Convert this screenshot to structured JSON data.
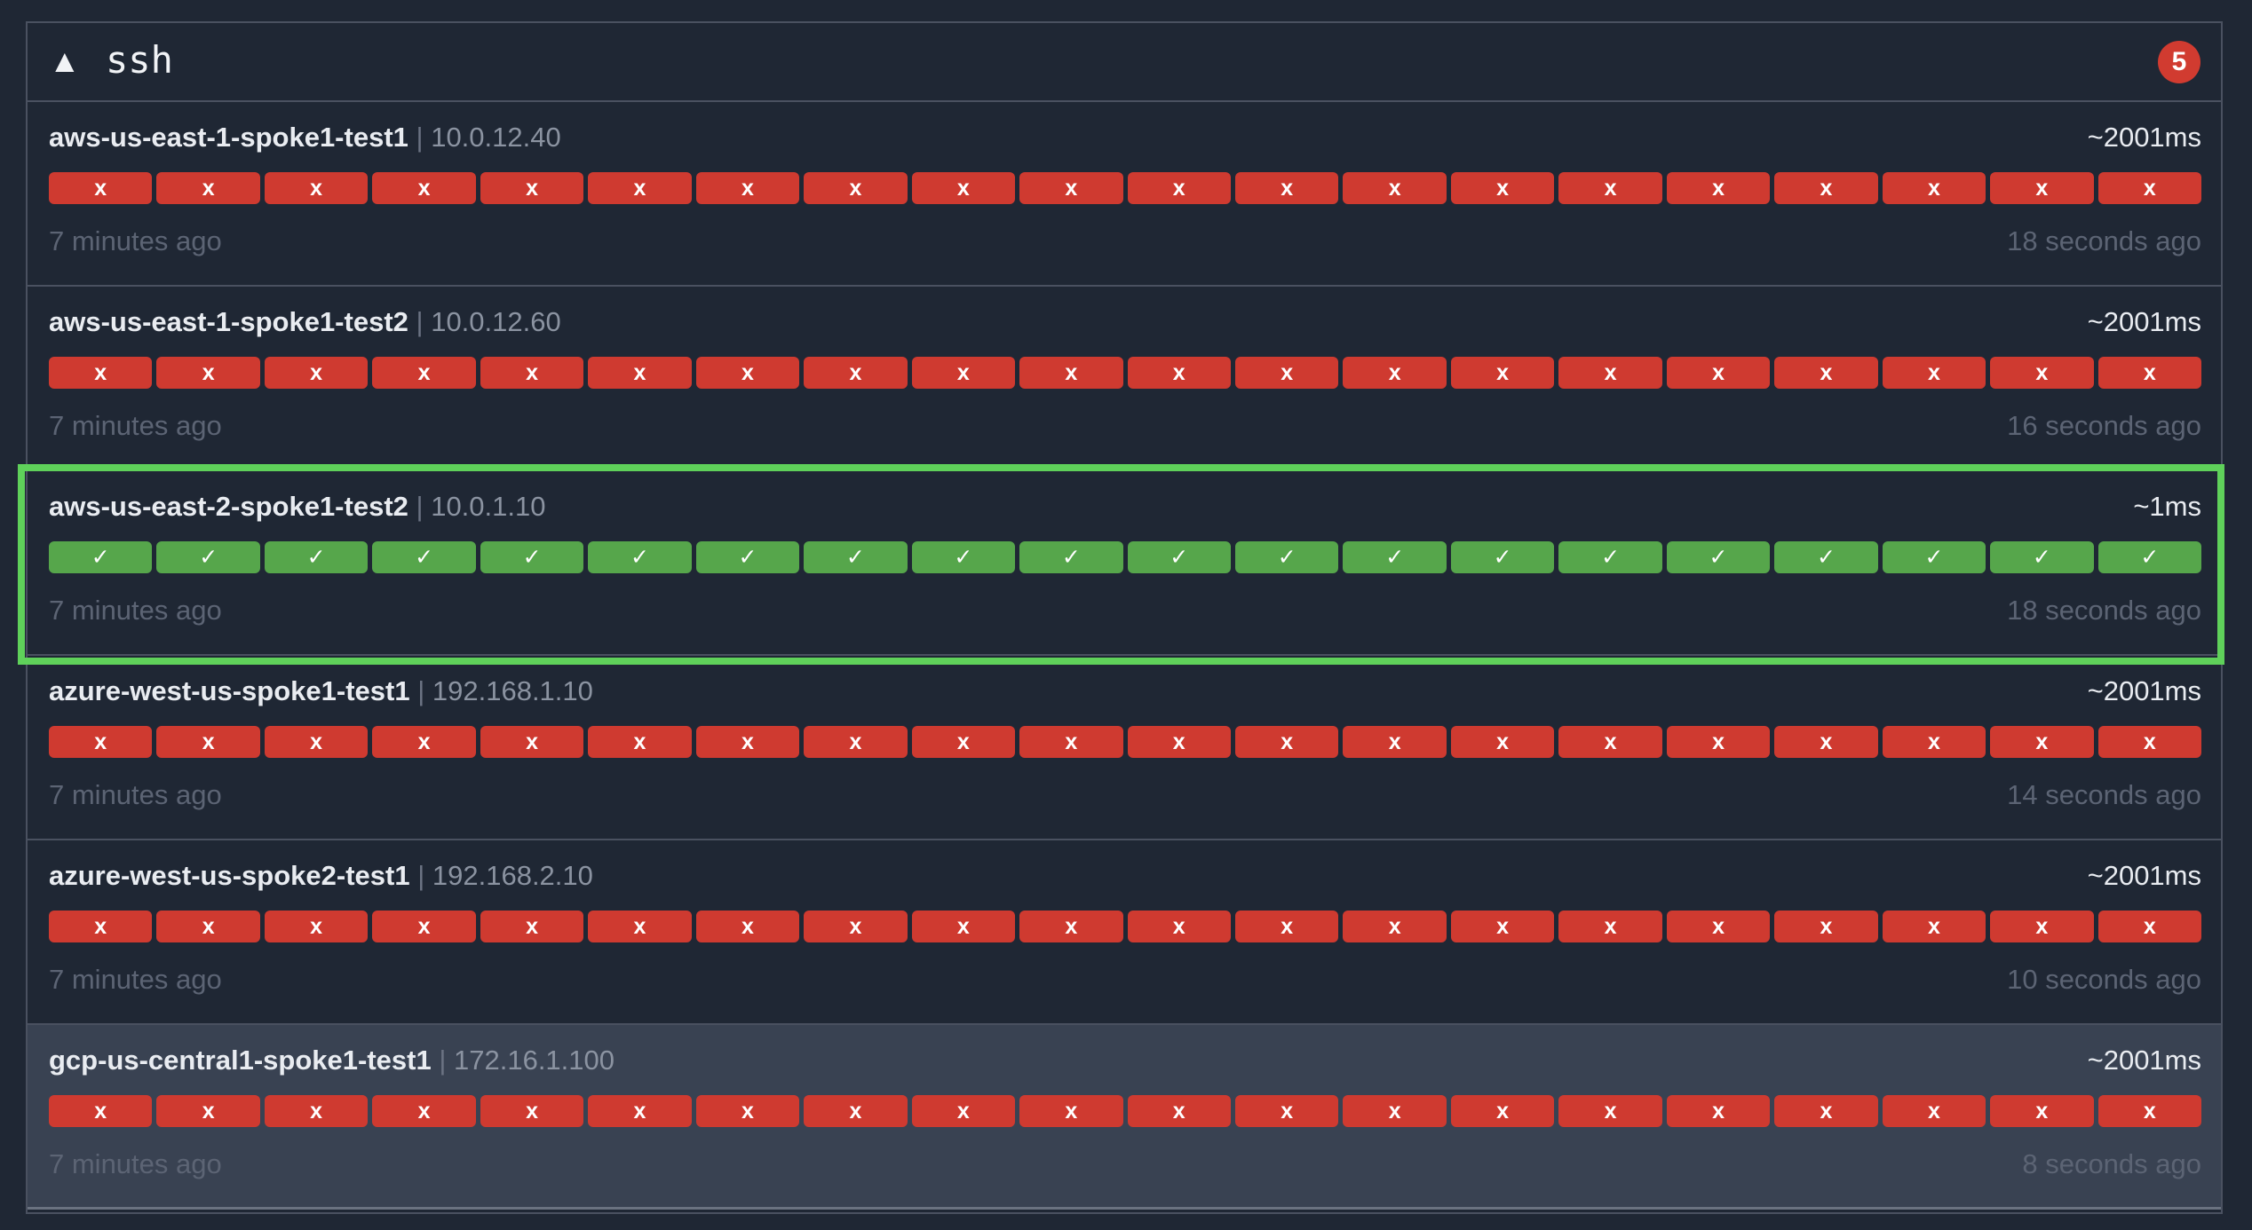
{
  "group": {
    "caret": "▲",
    "name": "ssh",
    "badge_count": "5"
  },
  "colors": {
    "background": "#1f2734",
    "fail": "#cf3a30",
    "success": "#56a64b",
    "badge": "#d13b30",
    "highlight": "#5fd15a"
  },
  "icons": {
    "fail": "x",
    "success": "✓"
  },
  "endpoints": [
    {
      "name": "aws-us-east-1-spoke1-test1",
      "separator": "|",
      "host": "10.0.12.40",
      "latency": "~2001ms",
      "oldest": "7 minutes ago",
      "newest": "18 seconds ago",
      "results": [
        "fail",
        "fail",
        "fail",
        "fail",
        "fail",
        "fail",
        "fail",
        "fail",
        "fail",
        "fail",
        "fail",
        "fail",
        "fail",
        "fail",
        "fail",
        "fail",
        "fail",
        "fail",
        "fail",
        "fail"
      ]
    },
    {
      "name": "aws-us-east-1-spoke1-test2",
      "separator": "|",
      "host": "10.0.12.60",
      "latency": "~2001ms",
      "oldest": "7 minutes ago",
      "newest": "16 seconds ago",
      "results": [
        "fail",
        "fail",
        "fail",
        "fail",
        "fail",
        "fail",
        "fail",
        "fail",
        "fail",
        "fail",
        "fail",
        "fail",
        "fail",
        "fail",
        "fail",
        "fail",
        "fail",
        "fail",
        "fail",
        "fail"
      ]
    },
    {
      "name": "aws-us-east-2-spoke1-test2",
      "separator": "|",
      "host": "10.0.1.10",
      "latency": "~1ms",
      "oldest": "7 minutes ago",
      "newest": "18 seconds ago",
      "highlighted": true,
      "results": [
        "ok",
        "ok",
        "ok",
        "ok",
        "ok",
        "ok",
        "ok",
        "ok",
        "ok",
        "ok",
        "ok",
        "ok",
        "ok",
        "ok",
        "ok",
        "ok",
        "ok",
        "ok",
        "ok",
        "ok"
      ]
    },
    {
      "name": "azure-west-us-spoke1-test1",
      "separator": "|",
      "host": "192.168.1.10",
      "latency": "~2001ms",
      "oldest": "7 minutes ago",
      "newest": "14 seconds ago",
      "results": [
        "fail",
        "fail",
        "fail",
        "fail",
        "fail",
        "fail",
        "fail",
        "fail",
        "fail",
        "fail",
        "fail",
        "fail",
        "fail",
        "fail",
        "fail",
        "fail",
        "fail",
        "fail",
        "fail",
        "fail"
      ]
    },
    {
      "name": "azure-west-us-spoke2-test1",
      "separator": "|",
      "host": "192.168.2.10",
      "latency": "~2001ms",
      "oldest": "7 minutes ago",
      "newest": "10 seconds ago",
      "results": [
        "fail",
        "fail",
        "fail",
        "fail",
        "fail",
        "fail",
        "fail",
        "fail",
        "fail",
        "fail",
        "fail",
        "fail",
        "fail",
        "fail",
        "fail",
        "fail",
        "fail",
        "fail",
        "fail",
        "fail"
      ]
    },
    {
      "name": "gcp-us-central1-spoke1-test1",
      "separator": "|",
      "host": "172.16.1.100",
      "latency": "~2001ms",
      "oldest": "7 minutes ago",
      "newest": "8 seconds ago",
      "results": [
        "fail",
        "fail",
        "fail",
        "fail",
        "fail",
        "fail",
        "fail",
        "fail",
        "fail",
        "fail",
        "fail",
        "fail",
        "fail",
        "fail",
        "fail",
        "fail",
        "fail",
        "fail",
        "fail",
        "fail"
      ]
    }
  ]
}
